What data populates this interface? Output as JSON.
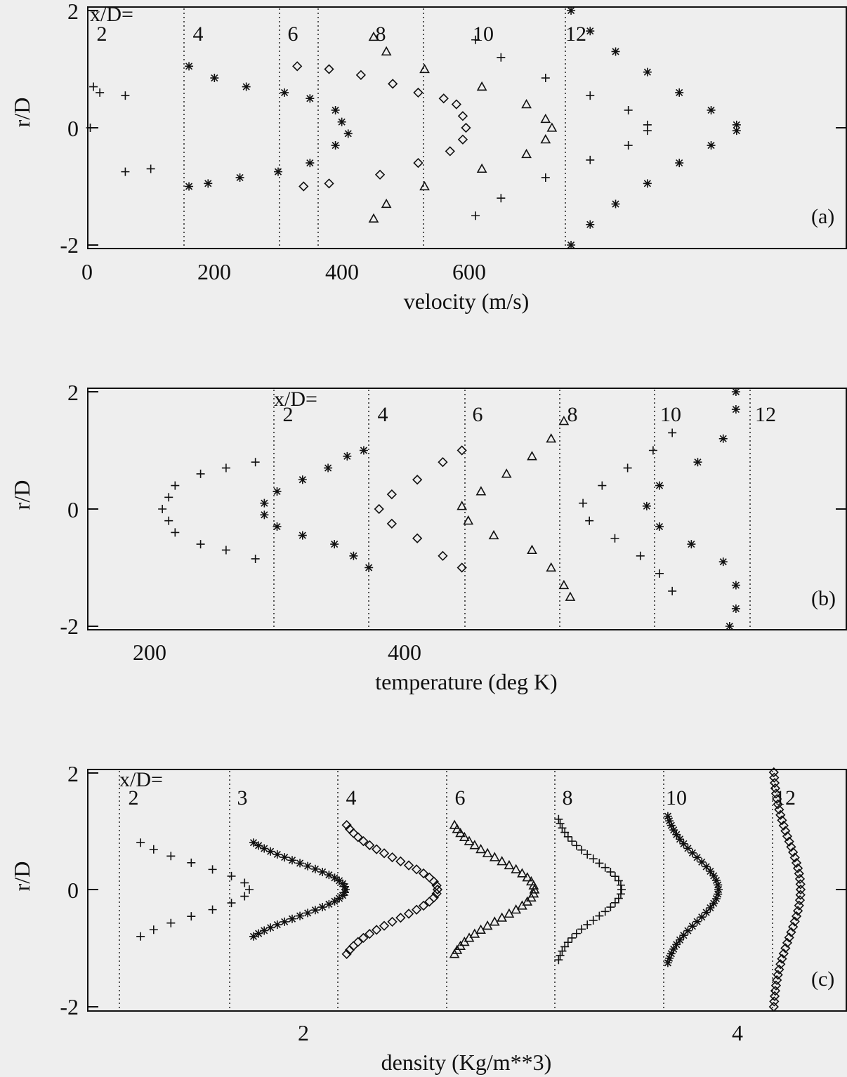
{
  "chart_data": [
    {
      "panel": "(a)",
      "type": "scatter",
      "xlabel": "velocity (m/s)",
      "ylabel": "r/D",
      "xlim": [
        0,
        600
      ],
      "ylim": [
        -2,
        2
      ],
      "x_ticks": [
        "0",
        "200",
        "400",
        "600"
      ],
      "y_ticks": [
        "2",
        "0",
        "-2"
      ],
      "station_prefix": "x/D=",
      "grid": false,
      "series": [
        {
          "station": "2",
          "marker": "plus",
          "profile": [
            [
              0,
              0.75
            ],
            [
              10,
              0.7
            ],
            [
              20,
              0.6
            ],
            [
              60,
              0.55
            ],
            [
              0,
              0.05
            ],
            [
              5,
              0
            ],
            [
              0,
              -0.05
            ],
            [
              60,
              -0.75
            ],
            [
              100,
              -0.7
            ],
            [
              0,
              -0.85
            ]
          ]
        },
        {
          "station": "4",
          "marker": "star",
          "profile": [
            [
              160,
              1.05
            ],
            [
              200,
              0.85
            ],
            [
              250,
              0.7
            ],
            [
              310,
              0.6
            ],
            [
              350,
              0.5
            ],
            [
              390,
              0.3
            ],
            [
              400,
              0.1
            ],
            [
              410,
              -0.1
            ],
            [
              390,
              -0.3
            ],
            [
              350,
              -0.6
            ],
            [
              300,
              -0.75
            ],
            [
              240,
              -0.85
            ],
            [
              190,
              -0.95
            ],
            [
              160,
              -1.0
            ]
          ]
        },
        {
          "station": "6",
          "marker": "diamond",
          "profile": [
            [
              330,
              1.05
            ],
            [
              380,
              1.0
            ],
            [
              430,
              0.9
            ],
            [
              480,
              0.75
            ],
            [
              520,
              0.6
            ],
            [
              560,
              0.5
            ],
            [
              580,
              0.4
            ],
            [
              590,
              0.2
            ],
            [
              595,
              0
            ],
            [
              590,
              -0.2
            ],
            [
              570,
              -0.4
            ],
            [
              520,
              -0.6
            ],
            [
              460,
              -0.8
            ],
            [
              380,
              -0.95
            ],
            [
              340,
              -1.0
            ]
          ]
        },
        {
          "station": "8",
          "marker": "triangle",
          "profile": [
            [
              450,
              1.55
            ],
            [
              470,
              1.3
            ],
            [
              530,
              1.0
            ],
            [
              620,
              0.7
            ],
            [
              690,
              0.4
            ],
            [
              720,
              0.15
            ],
            [
              730,
              0
            ],
            [
              720,
              -0.2
            ],
            [
              690,
              -0.45
            ],
            [
              620,
              -0.7
            ],
            [
              530,
              -1.0
            ],
            [
              470,
              -1.3
            ],
            [
              450,
              -1.55
            ]
          ]
        },
        {
          "station": "10",
          "marker": "plus",
          "profile": [
            [
              610,
              1.5
            ],
            [
              650,
              1.2
            ],
            [
              720,
              0.85
            ],
            [
              790,
              0.55
            ],
            [
              850,
              0.3
            ],
            [
              880,
              0.05
            ],
            [
              880,
              -0.05
            ],
            [
              850,
              -0.3
            ],
            [
              790,
              -0.55
            ],
            [
              720,
              -0.85
            ],
            [
              650,
              -1.2
            ],
            [
              610,
              -1.5
            ]
          ]
        },
        {
          "station": "12",
          "marker": "star",
          "profile": [
            [
              760,
              2.0
            ],
            [
              790,
              1.65
            ],
            [
              830,
              1.3
            ],
            [
              880,
              0.95
            ],
            [
              930,
              0.6
            ],
            [
              980,
              0.3
            ],
            [
              1020,
              0.05
            ],
            [
              1020,
              -0.05
            ],
            [
              980,
              -0.3
            ],
            [
              930,
              -0.6
            ],
            [
              880,
              -0.95
            ],
            [
              830,
              -1.3
            ],
            [
              790,
              -1.65
            ],
            [
              760,
              -2.0
            ]
          ]
        }
      ]
    },
    {
      "panel": "(b)",
      "type": "scatter",
      "xlabel": "temperature (deg K)",
      "ylabel": "r/D",
      "xlim": [
        150,
        750
      ],
      "ylim": [
        -2,
        2
      ],
      "x_ticks": [
        "200",
        "400"
      ],
      "y_ticks": [
        "2",
        "0",
        "-2"
      ],
      "station_prefix": "x/D=",
      "grid": false,
      "series": [
        {
          "station": "2",
          "marker": "plus",
          "profile": [
            [
              283,
              0.8
            ],
            [
              260,
              0.7
            ],
            [
              240,
              0.6
            ],
            [
              220,
              0.4
            ],
            [
              215,
              0.2
            ],
            [
              210,
              0
            ],
            [
              215,
              -0.2
            ],
            [
              220,
              -0.4
            ],
            [
              240,
              -0.6
            ],
            [
              260,
              -0.7
            ],
            [
              283,
              -0.85
            ]
          ]
        },
        {
          "station": "4",
          "marker": "star",
          "profile": [
            [
              368,
              1.0
            ],
            [
              355,
              0.9
            ],
            [
              340,
              0.7
            ],
            [
              320,
              0.5
            ],
            [
              300,
              0.3
            ],
            [
              290,
              0.1
            ],
            [
              290,
              -0.1
            ],
            [
              300,
              -0.3
            ],
            [
              320,
              -0.45
            ],
            [
              345,
              -0.6
            ],
            [
              360,
              -0.8
            ],
            [
              372,
              -1.0
            ]
          ]
        },
        {
          "station": "6",
          "marker": "diamond",
          "profile": [
            [
              445,
              1.0
            ],
            [
              430,
              0.8
            ],
            [
              410,
              0.5
            ],
            [
              390,
              0.25
            ],
            [
              380,
              0
            ],
            [
              390,
              -0.25
            ],
            [
              410,
              -0.5
            ],
            [
              430,
              -0.8
            ],
            [
              445,
              -1.0
            ]
          ]
        },
        {
          "station": "8",
          "marker": "triangle",
          "profile": [
            [
              525,
              1.5
            ],
            [
              515,
              1.2
            ],
            [
              500,
              0.9
            ],
            [
              480,
              0.6
            ],
            [
              460,
              0.3
            ],
            [
              445,
              0.05
            ],
            [
              450,
              -0.2
            ],
            [
              470,
              -0.45
            ],
            [
              500,
              -0.7
            ],
            [
              515,
              -1.0
            ],
            [
              525,
              -1.3
            ],
            [
              530,
              -1.5
            ]
          ]
        },
        {
          "station": "10",
          "marker": "plus",
          "profile": [
            [
              610,
              1.3
            ],
            [
              595,
              1.0
            ],
            [
              575,
              0.7
            ],
            [
              555,
              0.4
            ],
            [
              540,
              0.1
            ],
            [
              545,
              -0.2
            ],
            [
              565,
              -0.5
            ],
            [
              585,
              -0.8
            ],
            [
              600,
              -1.1
            ],
            [
              610,
              -1.4
            ]
          ]
        },
        {
          "station": "12",
          "marker": "star",
          "profile": [
            [
              660,
              2.0
            ],
            [
              660,
              1.7
            ],
            [
              650,
              1.2
            ],
            [
              630,
              0.8
            ],
            [
              600,
              0.4
            ],
            [
              590,
              0.05
            ],
            [
              600,
              -0.3
            ],
            [
              625,
              -0.6
            ],
            [
              650,
              -0.9
            ],
            [
              660,
              -1.3
            ],
            [
              660,
              -1.7
            ],
            [
              655,
              -2.0
            ]
          ]
        }
      ]
    },
    {
      "panel": "(c)",
      "type": "scatter",
      "xlabel": "density (Kg/m**3)",
      "ylabel": "r/D",
      "xlim": [
        0,
        4.5
      ],
      "ylim": [
        -2,
        2
      ],
      "x_ticks": [
        "2",
        "4"
      ],
      "y_ticks": [
        "2",
        "0",
        "-2"
      ],
      "station_prefix": "x/D=",
      "grid": false,
      "series": [
        {
          "station": "2",
          "marker": "plus",
          "profile": "gaussian"
        },
        {
          "station": "3",
          "marker": "star",
          "profile": "gaussian"
        },
        {
          "station": "4",
          "marker": "diamond",
          "profile": "gaussian"
        },
        {
          "station": "6",
          "marker": "triangle",
          "profile": "gaussian"
        },
        {
          "station": "8",
          "marker": "plus",
          "profile": "gaussian"
        },
        {
          "station": "10",
          "marker": "star",
          "profile": "gaussian"
        },
        {
          "station": "12",
          "marker": "diamond",
          "profile": "gaussian"
        }
      ]
    }
  ]
}
